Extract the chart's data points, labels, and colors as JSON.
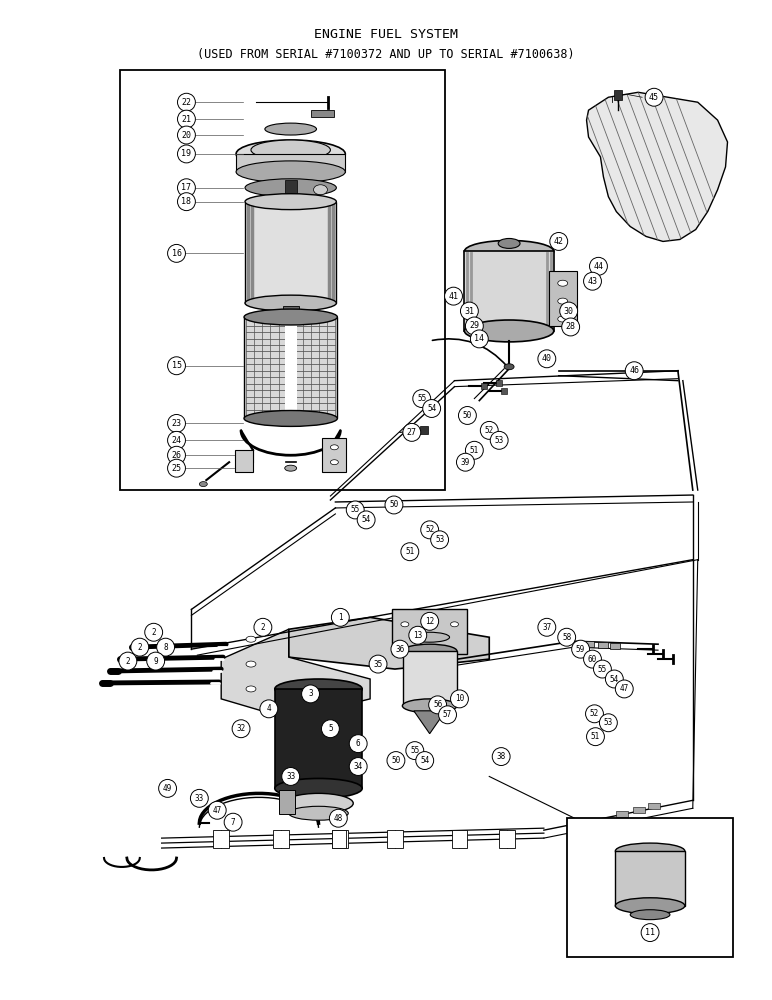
{
  "title_line1": "ENGINE FUEL SYSTEM",
  "title_line2": "(USED FROM SERIAL #7100372 AND UP TO SERIAL #7100638)",
  "bg_color": "#ffffff",
  "text_color": "#000000",
  "title_fontsize": 9.5,
  "fig_width": 7.72,
  "fig_height": 10.0,
  "dpi": 100
}
